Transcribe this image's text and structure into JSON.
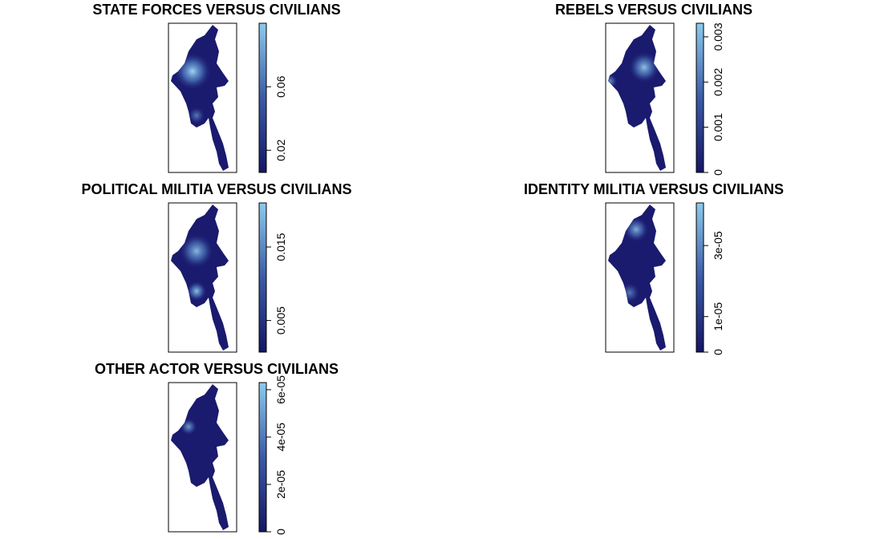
{
  "panels": [
    {
      "title": "STATE FORCES VERSUS CIVILIANS",
      "legend": {
        "lim": [
          0.006,
          0.1
        ],
        "ticks": [
          0.02,
          0.06
        ]
      }
    },
    {
      "title": "REBELS VERSUS CIVILIANS",
      "legend": {
        "lim": [
          0,
          0.0033
        ],
        "ticks": [
          0,
          0.001,
          0.002,
          0.003
        ]
      }
    },
    {
      "title": "POLITICAL MILITIA VERSUS CIVILIANS",
      "legend": {
        "lim": [
          0.0007,
          0.021
        ],
        "ticks": [
          0.005,
          0.015
        ]
      }
    },
    {
      "title": "IDENTITY MILITIA VERSUS CIVILIANS",
      "legend": {
        "lim": [
          0,
          4.2e-05
        ],
        "ticks": [
          0,
          {
            "value": 1e-05,
            "label": "1e-05"
          },
          {
            "value": 3e-05,
            "label": "3e-05"
          }
        ]
      }
    },
    {
      "title": "OTHER ACTOR VERSUS CIVILIANS",
      "legend": {
        "lim": [
          0,
          6.3e-05
        ],
        "ticks": [
          0,
          {
            "value": 2e-05,
            "label": "2e-05"
          },
          {
            "value": 4e-05,
            "label": "4e-05"
          },
          {
            "value": 6e-05,
            "label": "6e-05"
          }
        ]
      }
    }
  ]
}
